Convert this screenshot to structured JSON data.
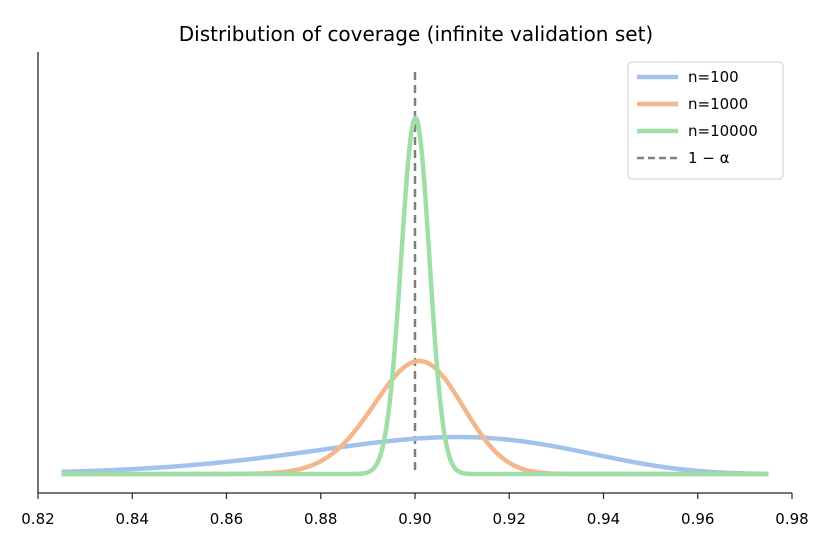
{
  "chart_data": {
    "type": "line",
    "title": "Distribution of coverage (infinite validation set)",
    "xlabel": "",
    "ylabel": "",
    "xlim": [
      0.82,
      0.98
    ],
    "x_ticks": [
      "0.82",
      "0.84",
      "0.86",
      "0.88",
      "0.90",
      "0.92",
      "0.94",
      "0.96",
      "0.98"
    ],
    "x_tick_values": [
      0.82,
      0.84,
      0.86,
      0.88,
      0.9,
      0.92,
      0.94,
      0.96,
      0.98
    ],
    "y_ticks_visible": false,
    "grid": false,
    "legend_position": "top-right",
    "distribution": "beta",
    "alpha": 0.1,
    "x_range": [
      0.825,
      0.975
    ],
    "series": [
      {
        "name": "n=100",
        "n": 100,
        "color": "#a1c2ec",
        "style": "solid"
      },
      {
        "name": "n=1000",
        "n": 1000,
        "color": "#f4b78c",
        "style": "solid"
      },
      {
        "name": "n=10000",
        "n": 10000,
        "color": "#9fdea6",
        "style": "solid"
      }
    ],
    "reference_line": {
      "label": "1 − α",
      "x": 0.9,
      "color": "#808080",
      "style": "dashed"
    }
  }
}
